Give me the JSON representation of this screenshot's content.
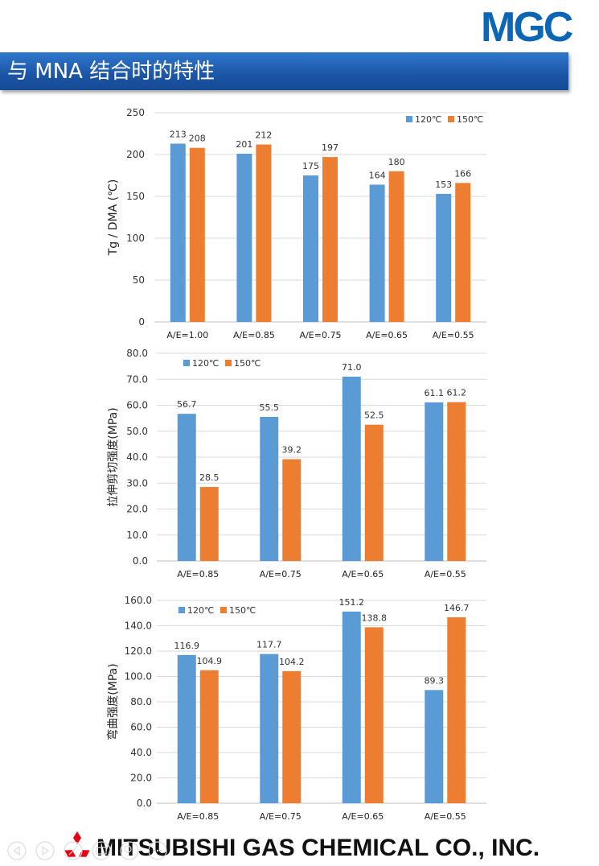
{
  "header": {
    "logo_text": "MGC",
    "title": "与 MNA 结合时的特性"
  },
  "footer": {
    "company": "MITSUBISHI GAS CHEMICAL CO., INC.",
    "logo_icon": "three-diamonds-icon"
  },
  "colors": {
    "series1": "#5b9bd5",
    "series2": "#ed7d31",
    "accent": "#1b55a6"
  },
  "chart_data": [
    {
      "type": "bar",
      "ylabel": "Tg / DMA (℃)",
      "categories": [
        "A/E=1.00",
        "A/E=0.85",
        "A/E=0.75",
        "A/E=0.65",
        "A/E=0.55"
      ],
      "ylim": [
        0,
        250
      ],
      "yticks": [
        "0",
        "50",
        "100",
        "150",
        "200",
        "250"
      ],
      "legend_position": "top-right",
      "series": [
        {
          "name": "120℃",
          "values": [
            213,
            201,
            175,
            164,
            153
          ],
          "labels": [
            "213",
            "201",
            "175",
            "164",
            "153"
          ]
        },
        {
          "name": "150℃",
          "values": [
            208,
            212,
            197,
            180,
            166
          ],
          "labels": [
            "208",
            "212",
            "197",
            "180",
            "166"
          ]
        }
      ]
    },
    {
      "type": "bar",
      "ylabel": "拉伸剪切强度(MPa)",
      "categories": [
        "A/E=0.85",
        "A/E=0.75",
        "A/E=0.65",
        "A/E=0.55"
      ],
      "ylim": [
        0,
        80
      ],
      "yticks": [
        "0.0",
        "10.0",
        "20.0",
        "30.0",
        "40.0",
        "50.0",
        "60.0",
        "70.0",
        "80.0"
      ],
      "legend_position": "top-left",
      "series": [
        {
          "name": "120℃",
          "values": [
            56.7,
            55.5,
            71.0,
            61.1
          ],
          "labels": [
            "56.7",
            "55.5",
            "71.0",
            "61.1"
          ]
        },
        {
          "name": "150℃",
          "values": [
            28.5,
            39.2,
            52.5,
            61.2
          ],
          "labels": [
            "28.5",
            "39.2",
            "52.5",
            "61.2"
          ]
        }
      ]
    },
    {
      "type": "bar",
      "ylabel": "弯曲强度(MPa)",
      "categories": [
        "A/E=0.85",
        "A/E=0.75",
        "A/E=0.65",
        "A/E=0.55"
      ],
      "ylim": [
        0,
        160
      ],
      "yticks": [
        "0.0",
        "20.0",
        "40.0",
        "60.0",
        "80.0",
        "100.0",
        "120.0",
        "140.0",
        "160.0"
      ],
      "legend_position": "top-left",
      "series": [
        {
          "name": "120℃",
          "values": [
            116.9,
            117.7,
            151.2,
            89.3
          ],
          "labels": [
            "116.9",
            "117.7",
            "151.2",
            "89.3"
          ]
        },
        {
          "name": "150℃",
          "values": [
            104.9,
            104.2,
            138.8,
            146.7
          ],
          "labels": [
            "104.9",
            "104.2",
            "138.8",
            "146.7"
          ]
        }
      ]
    }
  ]
}
